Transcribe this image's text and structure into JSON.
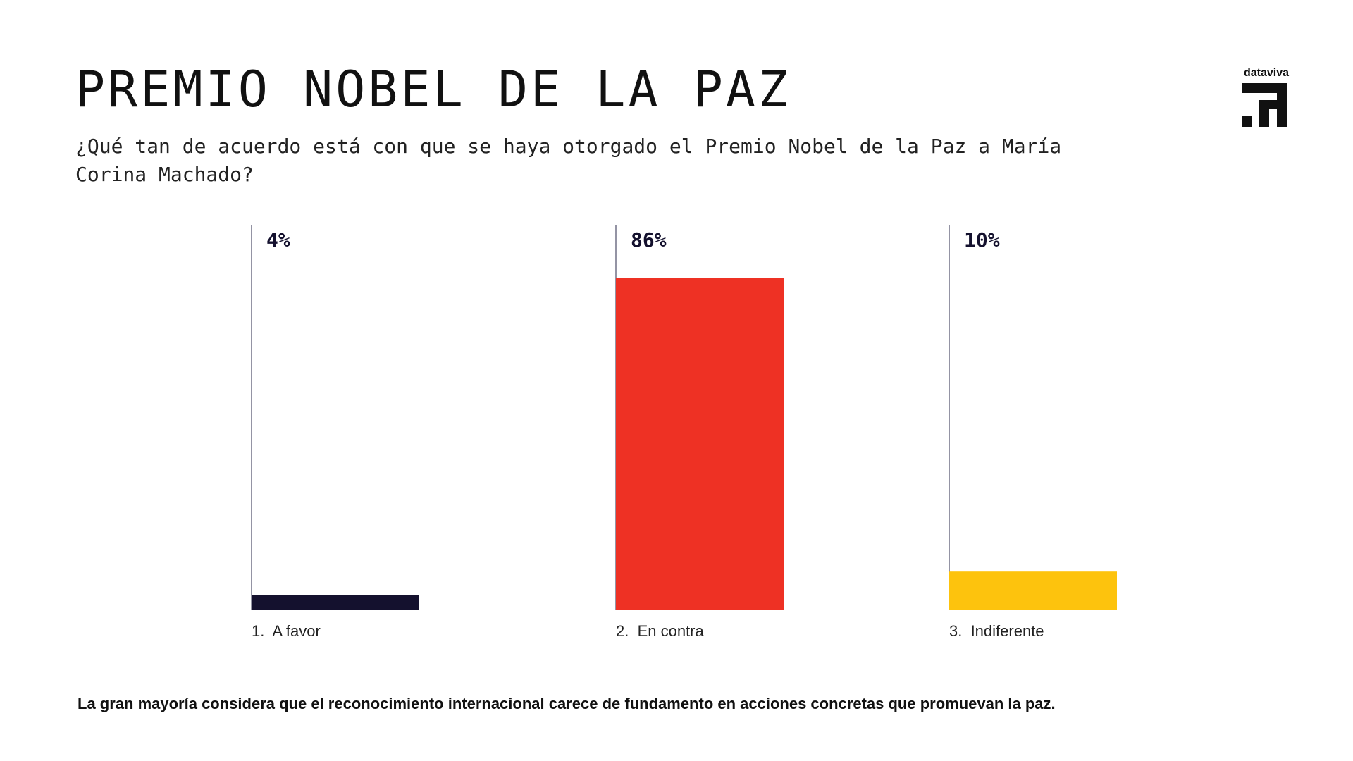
{
  "header": {
    "title": "PREMIO NOBEL DE LA PAZ",
    "subtitle": "¿Qué tan de acuerdo está con que se haya otorgado el Premio Nobel de la Paz a María Corina Machado?"
  },
  "brand": {
    "name": "dataviva",
    "icon": "dataviva-logo-icon"
  },
  "chart_data": {
    "type": "bar",
    "categories": [
      "1.  A favor",
      "2.  En contra",
      "3.  Indiferente"
    ],
    "values": [
      4,
      86,
      10
    ],
    "value_labels": [
      "4%",
      "86%",
      "10%"
    ],
    "colors": [
      "#14112e",
      "#ee3124",
      "#fdc30d"
    ],
    "ylim": [
      0,
      100
    ],
    "title": "",
    "xlabel": "",
    "ylabel": "",
    "grid": false,
    "legend": "none"
  },
  "footnote": "La gran mayoría considera que el reconocimiento internacional carece de fundamento en acciones concretas que promuevan la paz."
}
